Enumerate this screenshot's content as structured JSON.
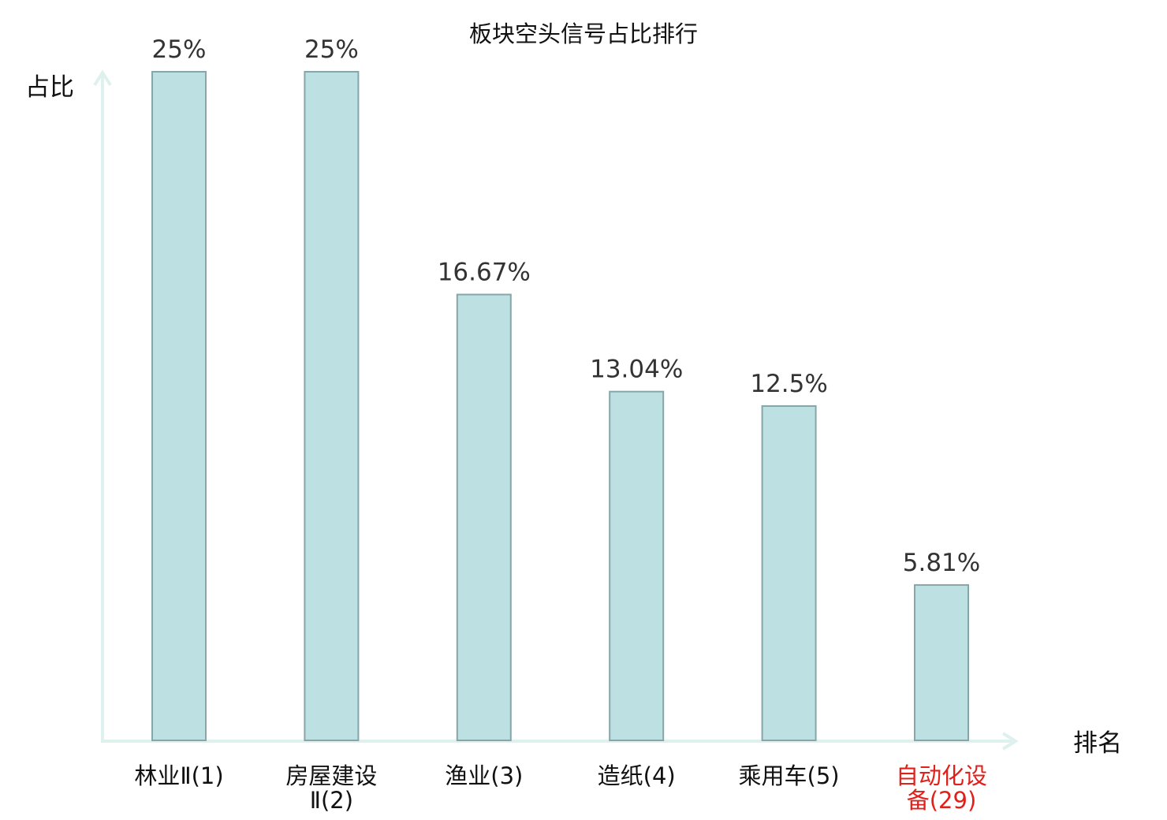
{
  "chart_data": {
    "type": "bar",
    "title": "板块空头信号占比排行",
    "ylabel": "占比",
    "xlabel": "排名",
    "categories": [
      [
        "林业Ⅱ(1)"
      ],
      [
        "房屋建设",
        "Ⅱ(2)"
      ],
      [
        "渔业(3)"
      ],
      [
        "造纸(4)"
      ],
      [
        "乘用车(5)"
      ],
      [
        "自动化设",
        "备(29)"
      ]
    ],
    "values": [
      25,
      25,
      16.67,
      13.04,
      12.5,
      5.81
    ],
    "value_labels": [
      "25%",
      "25%",
      "16.67%",
      "13.04%",
      "12.5%",
      "5.81%"
    ],
    "highlight_index": 5,
    "ylim": [
      0,
      25
    ],
    "grid": false,
    "colors": {
      "bar_fill": "#bde0e3",
      "bar_stroke": "#86a6a9",
      "axis": "#dff1ee",
      "highlight_text": "#e0201b",
      "text": "#111111",
      "label_text": "#333333"
    }
  }
}
